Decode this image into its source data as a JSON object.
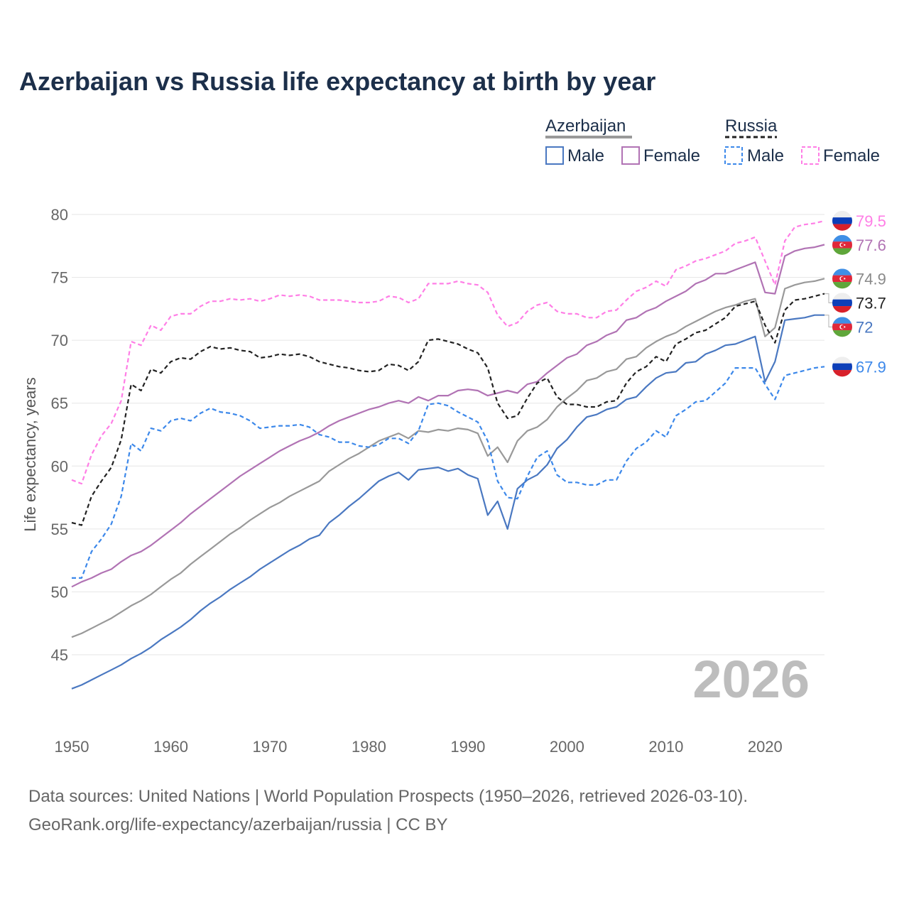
{
  "chart_data": {
    "type": "line",
    "title": "Azerbaijan vs Russia life expectancy at birth by year",
    "xlabel": "",
    "ylabel": "Life expectancy, years",
    "xlim": [
      1950,
      2026
    ],
    "ylim": [
      41,
      81.5
    ],
    "x_ticks": [
      "1950",
      "1960",
      "1970",
      "1980",
      "1990",
      "2000",
      "2010",
      "2020"
    ],
    "y_ticks": [
      "45",
      "50",
      "55",
      "60",
      "65",
      "70",
      "75",
      "80"
    ],
    "year_watermark": "2026",
    "legend": {
      "group_1": "Azerbaijan",
      "group_2": "Russia",
      "male": "Male",
      "female": "Female"
    },
    "x": [
      1950,
      1951,
      1952,
      1953,
      1954,
      1955,
      1956,
      1957,
      1958,
      1959,
      1960,
      1961,
      1962,
      1963,
      1964,
      1965,
      1966,
      1967,
      1968,
      1969,
      1970,
      1971,
      1972,
      1973,
      1974,
      1975,
      1976,
      1977,
      1978,
      1979,
      1980,
      1981,
      1982,
      1983,
      1984,
      1985,
      1986,
      1987,
      1988,
      1989,
      1990,
      1991,
      1992,
      1993,
      1994,
      1995,
      1996,
      1997,
      1998,
      1999,
      2000,
      2001,
      2002,
      2003,
      2004,
      2005,
      2006,
      2007,
      2008,
      2009,
      2010,
      2011,
      2012,
      2013,
      2014,
      2015,
      2016,
      2017,
      2018,
      2019,
      2020,
      2021,
      2022,
      2023,
      2024,
      2025,
      2026
    ],
    "series": [
      {
        "name": "Russia Female",
        "country": "Russia",
        "sex": "Female",
        "color": "#ff7ee6",
        "dashed": true,
        "flag": "russia",
        "end_label": "79.5",
        "values": [
          58.9,
          58.6,
          60.9,
          62.4,
          63.4,
          65.2,
          69.9,
          69.6,
          71.2,
          70.8,
          71.9,
          72.1,
          72.1,
          72.7,
          73.1,
          73.1,
          73.3,
          73.2,
          73.3,
          73.1,
          73.3,
          73.6,
          73.5,
          73.6,
          73.5,
          73.2,
          73.2,
          73.2,
          73.1,
          73.0,
          73.0,
          73.1,
          73.5,
          73.4,
          73.0,
          73.3,
          74.5,
          74.5,
          74.5,
          74.7,
          74.5,
          74.4,
          73.8,
          72.0,
          71.1,
          71.4,
          72.3,
          72.8,
          73.0,
          72.3,
          72.1,
          72.1,
          71.8,
          71.8,
          72.3,
          72.4,
          73.2,
          73.9,
          74.2,
          74.7,
          74.3,
          75.6,
          75.9,
          76.3,
          76.5,
          76.8,
          77.1,
          77.7,
          77.9,
          78.2,
          76.3,
          74.4,
          77.9,
          79.0,
          79.2,
          79.3,
          79.5
        ]
      },
      {
        "name": "Azerbaijan Female",
        "country": "Azerbaijan",
        "sex": "Female",
        "color": "#b173b4",
        "dashed": false,
        "flag": "azerbaijan",
        "end_label": "77.6",
        "values": [
          50.4,
          50.8,
          51.1,
          51.5,
          51.8,
          52.4,
          52.9,
          53.2,
          53.7,
          54.3,
          54.9,
          55.5,
          56.2,
          56.8,
          57.4,
          58.0,
          58.6,
          59.2,
          59.7,
          60.2,
          60.7,
          61.2,
          61.6,
          62.0,
          62.3,
          62.7,
          63.2,
          63.6,
          63.9,
          64.2,
          64.5,
          64.7,
          65.0,
          65.2,
          65.0,
          65.5,
          65.2,
          65.6,
          65.6,
          66.0,
          66.1,
          66.0,
          65.6,
          65.8,
          66.0,
          65.8,
          66.5,
          66.7,
          67.4,
          68.0,
          68.6,
          68.9,
          69.6,
          69.9,
          70.4,
          70.7,
          71.6,
          71.8,
          72.3,
          72.6,
          73.1,
          73.5,
          73.9,
          74.5,
          74.8,
          75.3,
          75.3,
          75.6,
          75.9,
          76.2,
          73.8,
          73.7,
          76.7,
          77.1,
          77.3,
          77.4,
          77.6
        ]
      },
      {
        "name": "Azerbaijan Total",
        "country": "Azerbaijan",
        "sex": "Total",
        "color": "#999999",
        "dashed": false,
        "flag": "azerbaijan",
        "end_label": "74.9",
        "values": [
          46.4,
          46.7,
          47.1,
          47.5,
          47.9,
          48.4,
          48.9,
          49.3,
          49.8,
          50.4,
          51.0,
          51.5,
          52.2,
          52.8,
          53.4,
          54.0,
          54.6,
          55.1,
          55.7,
          56.2,
          56.7,
          57.1,
          57.6,
          58.0,
          58.4,
          58.8,
          59.6,
          60.1,
          60.6,
          61.0,
          61.5,
          62.0,
          62.3,
          62.6,
          62.2,
          62.8,
          62.7,
          62.9,
          62.8,
          63.0,
          62.9,
          62.6,
          60.8,
          61.5,
          60.3,
          62.0,
          62.8,
          63.1,
          63.7,
          64.7,
          65.4,
          66.0,
          66.8,
          67.0,
          67.5,
          67.7,
          68.5,
          68.7,
          69.4,
          69.9,
          70.3,
          70.6,
          71.1,
          71.5,
          71.9,
          72.3,
          72.6,
          72.8,
          73.1,
          73.3,
          70.3,
          71.0,
          74.1,
          74.4,
          74.6,
          74.7,
          74.9
        ]
      },
      {
        "name": "Russia Total",
        "country": "Russia",
        "sex": "Total",
        "color": "#222222",
        "dashed": true,
        "flag": "russia",
        "end_label": "73.7",
        "values": [
          55.5,
          55.3,
          57.6,
          58.8,
          59.9,
          62.1,
          66.5,
          66.0,
          67.7,
          67.4,
          68.3,
          68.6,
          68.5,
          69.1,
          69.5,
          69.3,
          69.4,
          69.2,
          69.1,
          68.6,
          68.7,
          68.9,
          68.8,
          68.9,
          68.7,
          68.3,
          68.1,
          67.9,
          67.8,
          67.6,
          67.5,
          67.6,
          68.1,
          68.0,
          67.6,
          68.3,
          70.0,
          70.1,
          69.9,
          69.7,
          69.3,
          69.0,
          67.8,
          65.0,
          63.8,
          64.0,
          65.4,
          66.6,
          67.0,
          65.5,
          64.9,
          64.9,
          64.7,
          64.7,
          65.1,
          65.2,
          66.6,
          67.5,
          67.9,
          68.7,
          68.3,
          69.7,
          70.1,
          70.6,
          70.8,
          71.3,
          71.8,
          72.7,
          72.9,
          73.1,
          71.2,
          69.8,
          72.4,
          73.2,
          73.3,
          73.5,
          73.7
        ]
      },
      {
        "name": "Azerbaijan Male",
        "country": "Azerbaijan",
        "sex": "Male",
        "color": "#4a78c1",
        "dashed": false,
        "flag": "azerbaijan",
        "end_label": "72",
        "values": [
          42.3,
          42.6,
          43.0,
          43.4,
          43.8,
          44.2,
          44.7,
          45.1,
          45.6,
          46.2,
          46.7,
          47.2,
          47.8,
          48.5,
          49.1,
          49.6,
          50.2,
          50.7,
          51.2,
          51.8,
          52.3,
          52.8,
          53.3,
          53.7,
          54.2,
          54.5,
          55.5,
          56.1,
          56.8,
          57.4,
          58.1,
          58.8,
          59.2,
          59.5,
          58.9,
          59.7,
          59.8,
          59.9,
          59.6,
          59.8,
          59.3,
          59.0,
          56.1,
          57.2,
          55.0,
          58.2,
          58.9,
          59.3,
          60.1,
          61.4,
          62.1,
          63.1,
          63.9,
          64.1,
          64.5,
          64.7,
          65.3,
          65.5,
          66.3,
          67.0,
          67.4,
          67.5,
          68.2,
          68.3,
          68.9,
          69.2,
          69.6,
          69.7,
          70.0,
          70.3,
          66.7,
          68.3,
          71.6,
          71.7,
          71.8,
          72.0,
          72.0
        ]
      },
      {
        "name": "Russia Male",
        "country": "Russia",
        "sex": "Male",
        "color": "#3c88ea",
        "dashed": true,
        "flag": "russia",
        "end_label": "67.9",
        "values": [
          51.1,
          51.1,
          53.2,
          54.2,
          55.4,
          57.6,
          61.8,
          61.2,
          63.0,
          62.8,
          63.6,
          63.8,
          63.6,
          64.2,
          64.6,
          64.3,
          64.2,
          64.0,
          63.6,
          63.0,
          63.1,
          63.2,
          63.2,
          63.3,
          63.1,
          62.5,
          62.3,
          61.9,
          61.9,
          61.6,
          61.5,
          61.7,
          62.2,
          62.2,
          61.8,
          62.8,
          64.9,
          65.0,
          64.8,
          64.3,
          63.9,
          63.5,
          62.0,
          58.8,
          57.5,
          57.4,
          59.2,
          60.7,
          61.2,
          59.3,
          58.7,
          58.7,
          58.5,
          58.5,
          58.9,
          58.9,
          60.4,
          61.4,
          61.9,
          62.8,
          62.3,
          64.0,
          64.5,
          65.1,
          65.2,
          65.9,
          66.6,
          67.8,
          67.8,
          67.8,
          66.5,
          65.3,
          67.2,
          67.4,
          67.6,
          67.8,
          67.9
        ]
      }
    ]
  },
  "footer": {
    "source_line": "Data sources: United Nations | World Population Prospects (1950–2026, retrieved 2026-03-10).",
    "url_line": "GeoRank.org/life-expectancy/azerbaijan/russia | CC BY"
  }
}
